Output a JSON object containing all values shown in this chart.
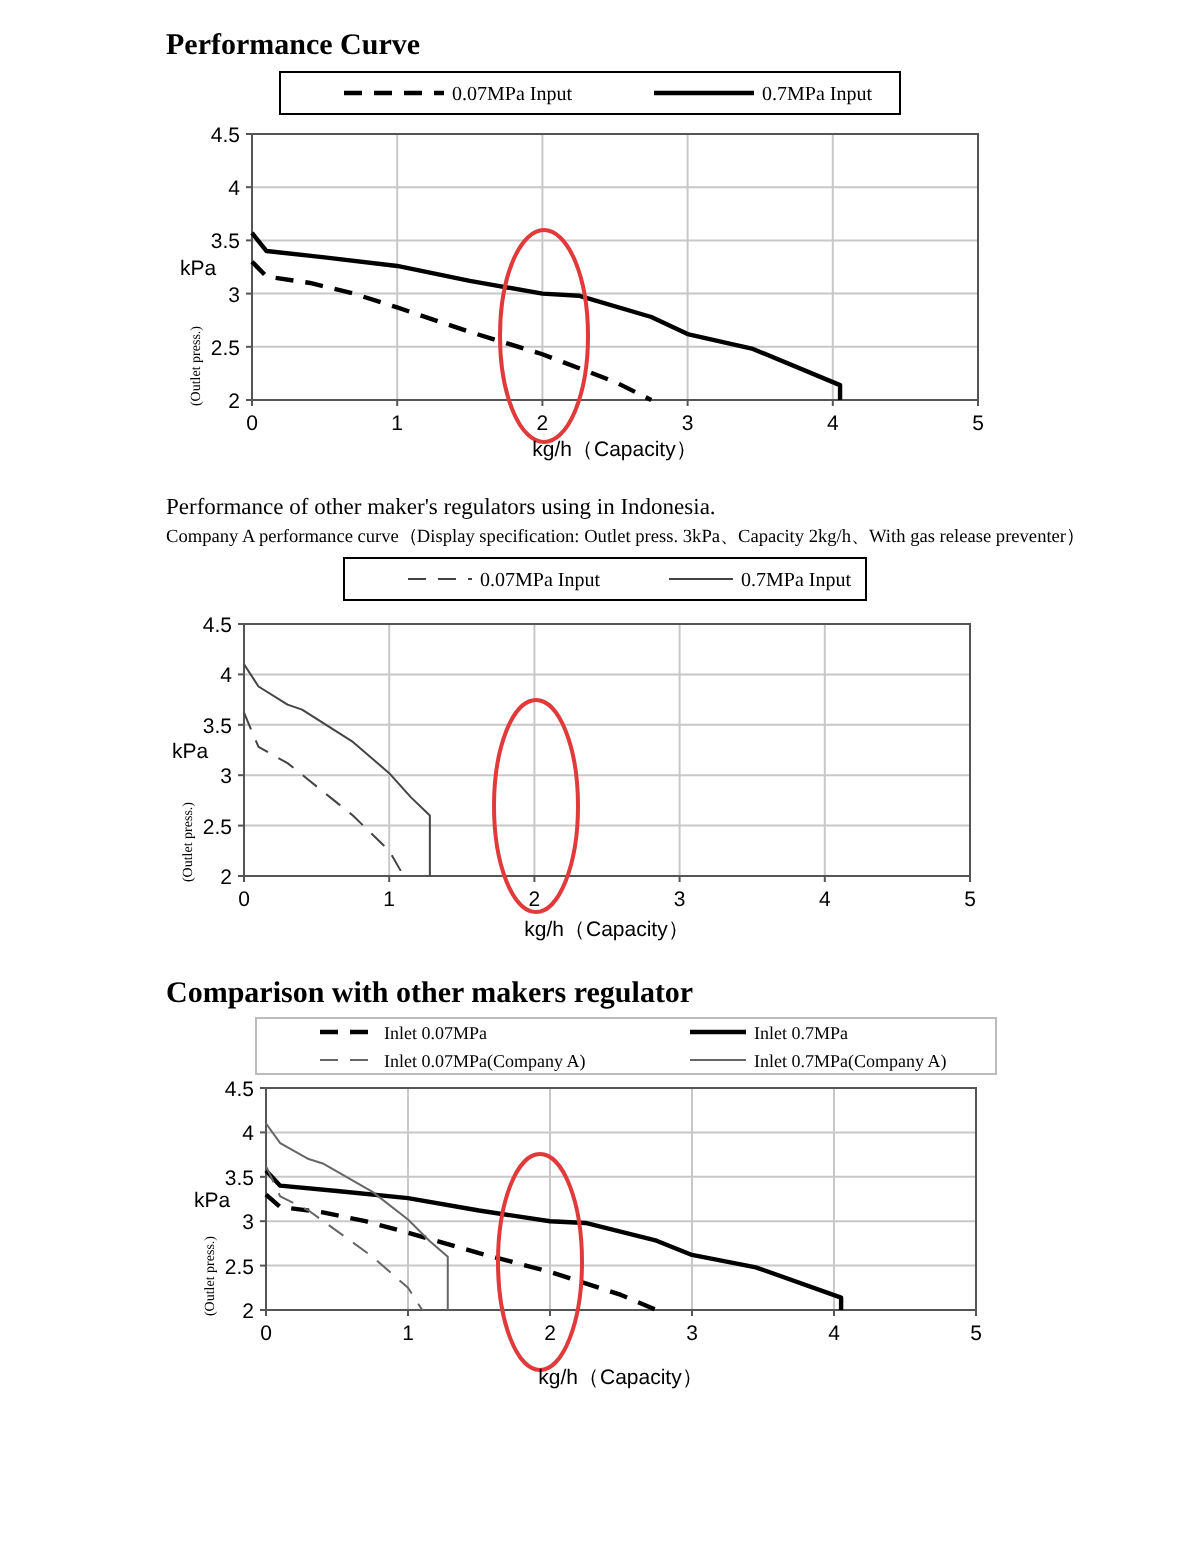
{
  "chart_data": [
    {
      "type": "line",
      "title": "Performance Curve",
      "xlabel": "kg/h（Capacity）",
      "ylabel": "kPa",
      "annotations": [
        "(Outlet press.)"
      ],
      "xlim": [
        0,
        5
      ],
      "ylim": [
        2,
        4.5
      ],
      "xticks": [
        0,
        1,
        2,
        3,
        4,
        5
      ],
      "yticks": [
        2,
        2.5,
        3,
        3.5,
        4,
        4.5
      ],
      "grid": true,
      "legend": "top",
      "marker": "none",
      "series": [
        {
          "name": "0.07MPa Input",
          "color": "#000000",
          "line_style": "dashed",
          "x": [
            0,
            0.1,
            0.4,
            0.7,
            1.0,
            1.5,
            2.0,
            2.5,
            2.75
          ],
          "values": [
            3.3,
            3.16,
            3.1,
            3.0,
            2.87,
            2.64,
            2.43,
            2.17,
            2.0
          ]
        },
        {
          "name": "0.7MPa Input",
          "color": "#000000",
          "line_style": "solid",
          "x": [
            0,
            0.1,
            0.5,
            1.0,
            1.5,
            2.0,
            2.25,
            2.75,
            3.0,
            3.45,
            4.05,
            4.05
          ],
          "values": [
            3.57,
            3.4,
            3.34,
            3.26,
            3.12,
            3.0,
            2.98,
            2.78,
            2.62,
            2.48,
            2.14,
            2.0
          ]
        }
      ]
    },
    {
      "type": "line",
      "title": "Performance of other maker's regulators using in Indonesia.",
      "subtitle": "Company A performance curve（Display specification: Outlet press. 3kPa、Capacity 2kg/h、With gas release preventer）",
      "xlabel": "kg/h（Capacity）",
      "ylabel": "kPa",
      "annotations": [
        "(Outlet press.)"
      ],
      "xlim": [
        0,
        5
      ],
      "ylim": [
        2,
        4.5
      ],
      "xticks": [
        0,
        1,
        2,
        3,
        4,
        5
      ],
      "yticks": [
        2,
        2.5,
        3,
        3.5,
        4,
        4.5
      ],
      "grid": true,
      "legend": "top",
      "marker": "none",
      "series": [
        {
          "name": "0.07MPa Input",
          "color": "#444444",
          "line_style": "dashed",
          "x": [
            0,
            0.05,
            0.1,
            0.3,
            0.75,
            1.0,
            1.1
          ],
          "values": [
            3.62,
            3.45,
            3.28,
            3.12,
            2.6,
            2.25,
            2.0
          ]
        },
        {
          "name": "0.7MPa Input",
          "color": "#444444",
          "line_style": "solid",
          "x": [
            0,
            0.1,
            0.3,
            0.4,
            0.75,
            1.0,
            1.15,
            1.28,
            1.28
          ],
          "values": [
            4.1,
            3.88,
            3.7,
            3.65,
            3.33,
            3.02,
            2.78,
            2.6,
            2.0
          ]
        }
      ]
    },
    {
      "type": "line",
      "title": "Comparison with other makers regulator",
      "xlabel": "kg/h（Capacity）",
      "ylabel": "kPa",
      "annotations": [
        "(Outlet press.)"
      ],
      "xlim": [
        0,
        5
      ],
      "ylim": [
        2,
        4.5
      ],
      "xticks": [
        0,
        1,
        2,
        3,
        4,
        5
      ],
      "yticks": [
        2,
        2.5,
        3,
        3.5,
        4,
        4.5
      ],
      "grid": true,
      "legend": "top",
      "marker": "none",
      "series": [
        {
          "name": "Inlet 0.07MPa",
          "color": "#000000",
          "line_style": "dashed",
          "x": [
            0,
            0.1,
            0.4,
            0.7,
            1.0,
            1.5,
            2.0,
            2.5,
            2.75
          ],
          "values": [
            3.3,
            3.16,
            3.1,
            3.0,
            2.87,
            2.64,
            2.43,
            2.17,
            2.0
          ]
        },
        {
          "name": "Inlet 0.7MPa",
          "color": "#000000",
          "line_style": "solid",
          "x": [
            0,
            0.1,
            0.5,
            1.0,
            1.5,
            2.0,
            2.25,
            2.75,
            3.0,
            3.45,
            4.05,
            4.05
          ],
          "values": [
            3.57,
            3.4,
            3.34,
            3.26,
            3.12,
            3.0,
            2.98,
            2.78,
            2.62,
            2.48,
            2.14,
            2.0
          ]
        },
        {
          "name": "Inlet 0.07MPa(Company A)",
          "color": "#666666",
          "line_style": "dashed",
          "x": [
            0,
            0.05,
            0.1,
            0.3,
            0.75,
            1.0,
            1.1
          ],
          "values": [
            3.62,
            3.45,
            3.28,
            3.12,
            2.6,
            2.25,
            2.0
          ]
        },
        {
          "name": "Inlet 0.7MPa(Company A)",
          "color": "#666666",
          "line_style": "solid",
          "x": [
            0,
            0.1,
            0.3,
            0.4,
            0.75,
            1.0,
            1.15,
            1.28,
            1.28
          ],
          "values": [
            4.1,
            3.88,
            3.7,
            3.65,
            3.33,
            3.02,
            2.78,
            2.6,
            2.0
          ]
        }
      ]
    }
  ]
}
